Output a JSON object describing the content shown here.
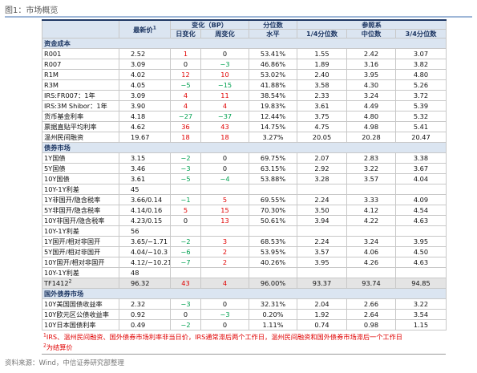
{
  "title": "图1：市场概览",
  "table": {
    "header": {
      "price": {
        "text": "最新价",
        "sup": "1"
      },
      "change": "变化（BP）",
      "percentile": "分位数",
      "reference": "参照系",
      "sub": [
        "日变化",
        "周变化",
        "水平",
        "1/4分位数",
        "中位数",
        "3/4分位数"
      ]
    },
    "sections": [
      {
        "name": "资金成本",
        "rows": [
          [
            "R001",
            "2.52",
            "1",
            "0",
            "53.41%",
            "1.55",
            "2.42",
            "3.07"
          ],
          [
            "R007",
            "3.09",
            "0",
            "−3",
            "46.86%",
            "1.89",
            "3.16",
            "3.82"
          ],
          [
            "R1M",
            "4.02",
            "12",
            "10",
            "53.02%",
            "2.40",
            "3.95",
            "4.80"
          ],
          [
            "R3M",
            "4.05",
            "−5",
            "−15",
            "41.88%",
            "3.58",
            "4.30",
            "5.26"
          ],
          [
            "IRS:FR007：1年",
            "3.09",
            "4",
            "11",
            "38.54%",
            "2.33",
            "3.24",
            "3.72"
          ],
          [
            "IRS:3M Shibor：1年",
            "3.90",
            "4",
            "4",
            "19.83%",
            "3.61",
            "4.49",
            "5.39"
          ],
          [
            "货币基金利率",
            "4.18",
            "−27",
            "−37",
            "12.44%",
            "3.75",
            "4.80",
            "5.32"
          ],
          [
            "票据直贴平均利率",
            "4.62",
            "36",
            "43",
            "14.75%",
            "4.75",
            "4.98",
            "5.41"
          ],
          [
            "温州民间融资",
            "19.67",
            "18",
            "18",
            "3.27%",
            "20.05",
            "20.28",
            "20.47"
          ]
        ]
      },
      {
        "name": "债券市场",
        "rows": [
          [
            "1Y国债",
            "3.15",
            "−2",
            "0",
            "69.75%",
            "2.07",
            "2.83",
            "3.38"
          ],
          [
            "5Y国债",
            "3.46",
            "−3",
            "0",
            "63.15%",
            "2.92",
            "3.22",
            "3.67"
          ],
          [
            "10Y国债",
            "3.61",
            "−5",
            "−4",
            "53.88%",
            "3.28",
            "3.57",
            "4.04"
          ],
          [
            "10Y-1Y利差",
            "45"
          ],
          [
            "1Y非国开/隐含税率",
            "3.66/0.14",
            "−1",
            "5",
            "69.55%",
            "2.24",
            "3.33",
            "4.09"
          ],
          [
            "5Y非国开/隐含税率",
            "4.14/0.16",
            "5",
            "15",
            "70.30%",
            "3.50",
            "4.12",
            "4.54"
          ],
          [
            "10Y非国开/隐含税率",
            "4.23/0.15",
            "0",
            "13",
            "50.61%",
            "3.94",
            "4.22",
            "4.63"
          ],
          [
            "10Y-1Y利差",
            "56"
          ],
          [
            "1Y国开/相对非国开",
            "3.65/−1.71",
            "−2",
            "3",
            "68.53%",
            "2.24",
            "3.24",
            "3.95"
          ],
          [
            "5Y国开/相对非国开",
            "4.04/−10.3",
            "−6",
            "2",
            "53.95%",
            "3.57",
            "4.06",
            "4.50"
          ],
          [
            "10Y国开/相对非国开",
            "4.12/−10.21",
            "−7",
            "2",
            "40.26%",
            "3.95",
            "4.26",
            "4.63"
          ],
          [
            "10Y-1Y利差",
            "48"
          ],
          [
            {
              "text": "TF1412",
              "sup": "2"
            },
            "96.32",
            "43",
            "4",
            "96.00%",
            "93.37",
            "93.74",
            "94.85"
          ]
        ]
      },
      {
        "name": "国外债券市场",
        "rows": [
          [
            "10Y美国国债收益率",
            "2.32",
            "−3",
            "0",
            "32.31%",
            "2.04",
            "2.66",
            "3.22"
          ],
          [
            "10Y欧元区公债收益率",
            "0.92",
            "0",
            "−3",
            "0.20%",
            "1.92",
            "2.64",
            "3.54"
          ],
          [
            "10Y日本国债利率",
            "0.49",
            "−2",
            "0",
            "1.11%",
            "0.74",
            "0.98",
            "1.15"
          ]
        ]
      }
    ]
  },
  "footnotes": [
    {
      "sup": "1",
      "text": "IRS、温州民间融资、国外债券市场利率非当日价，IRS通常滞后两个工作日，温州民间融资和国外债券市场滞后一个工作日"
    },
    {
      "sup": "2",
      "text": "为结算价"
    }
  ],
  "source": "资料来源：Wind，中信证券研究部整理"
}
